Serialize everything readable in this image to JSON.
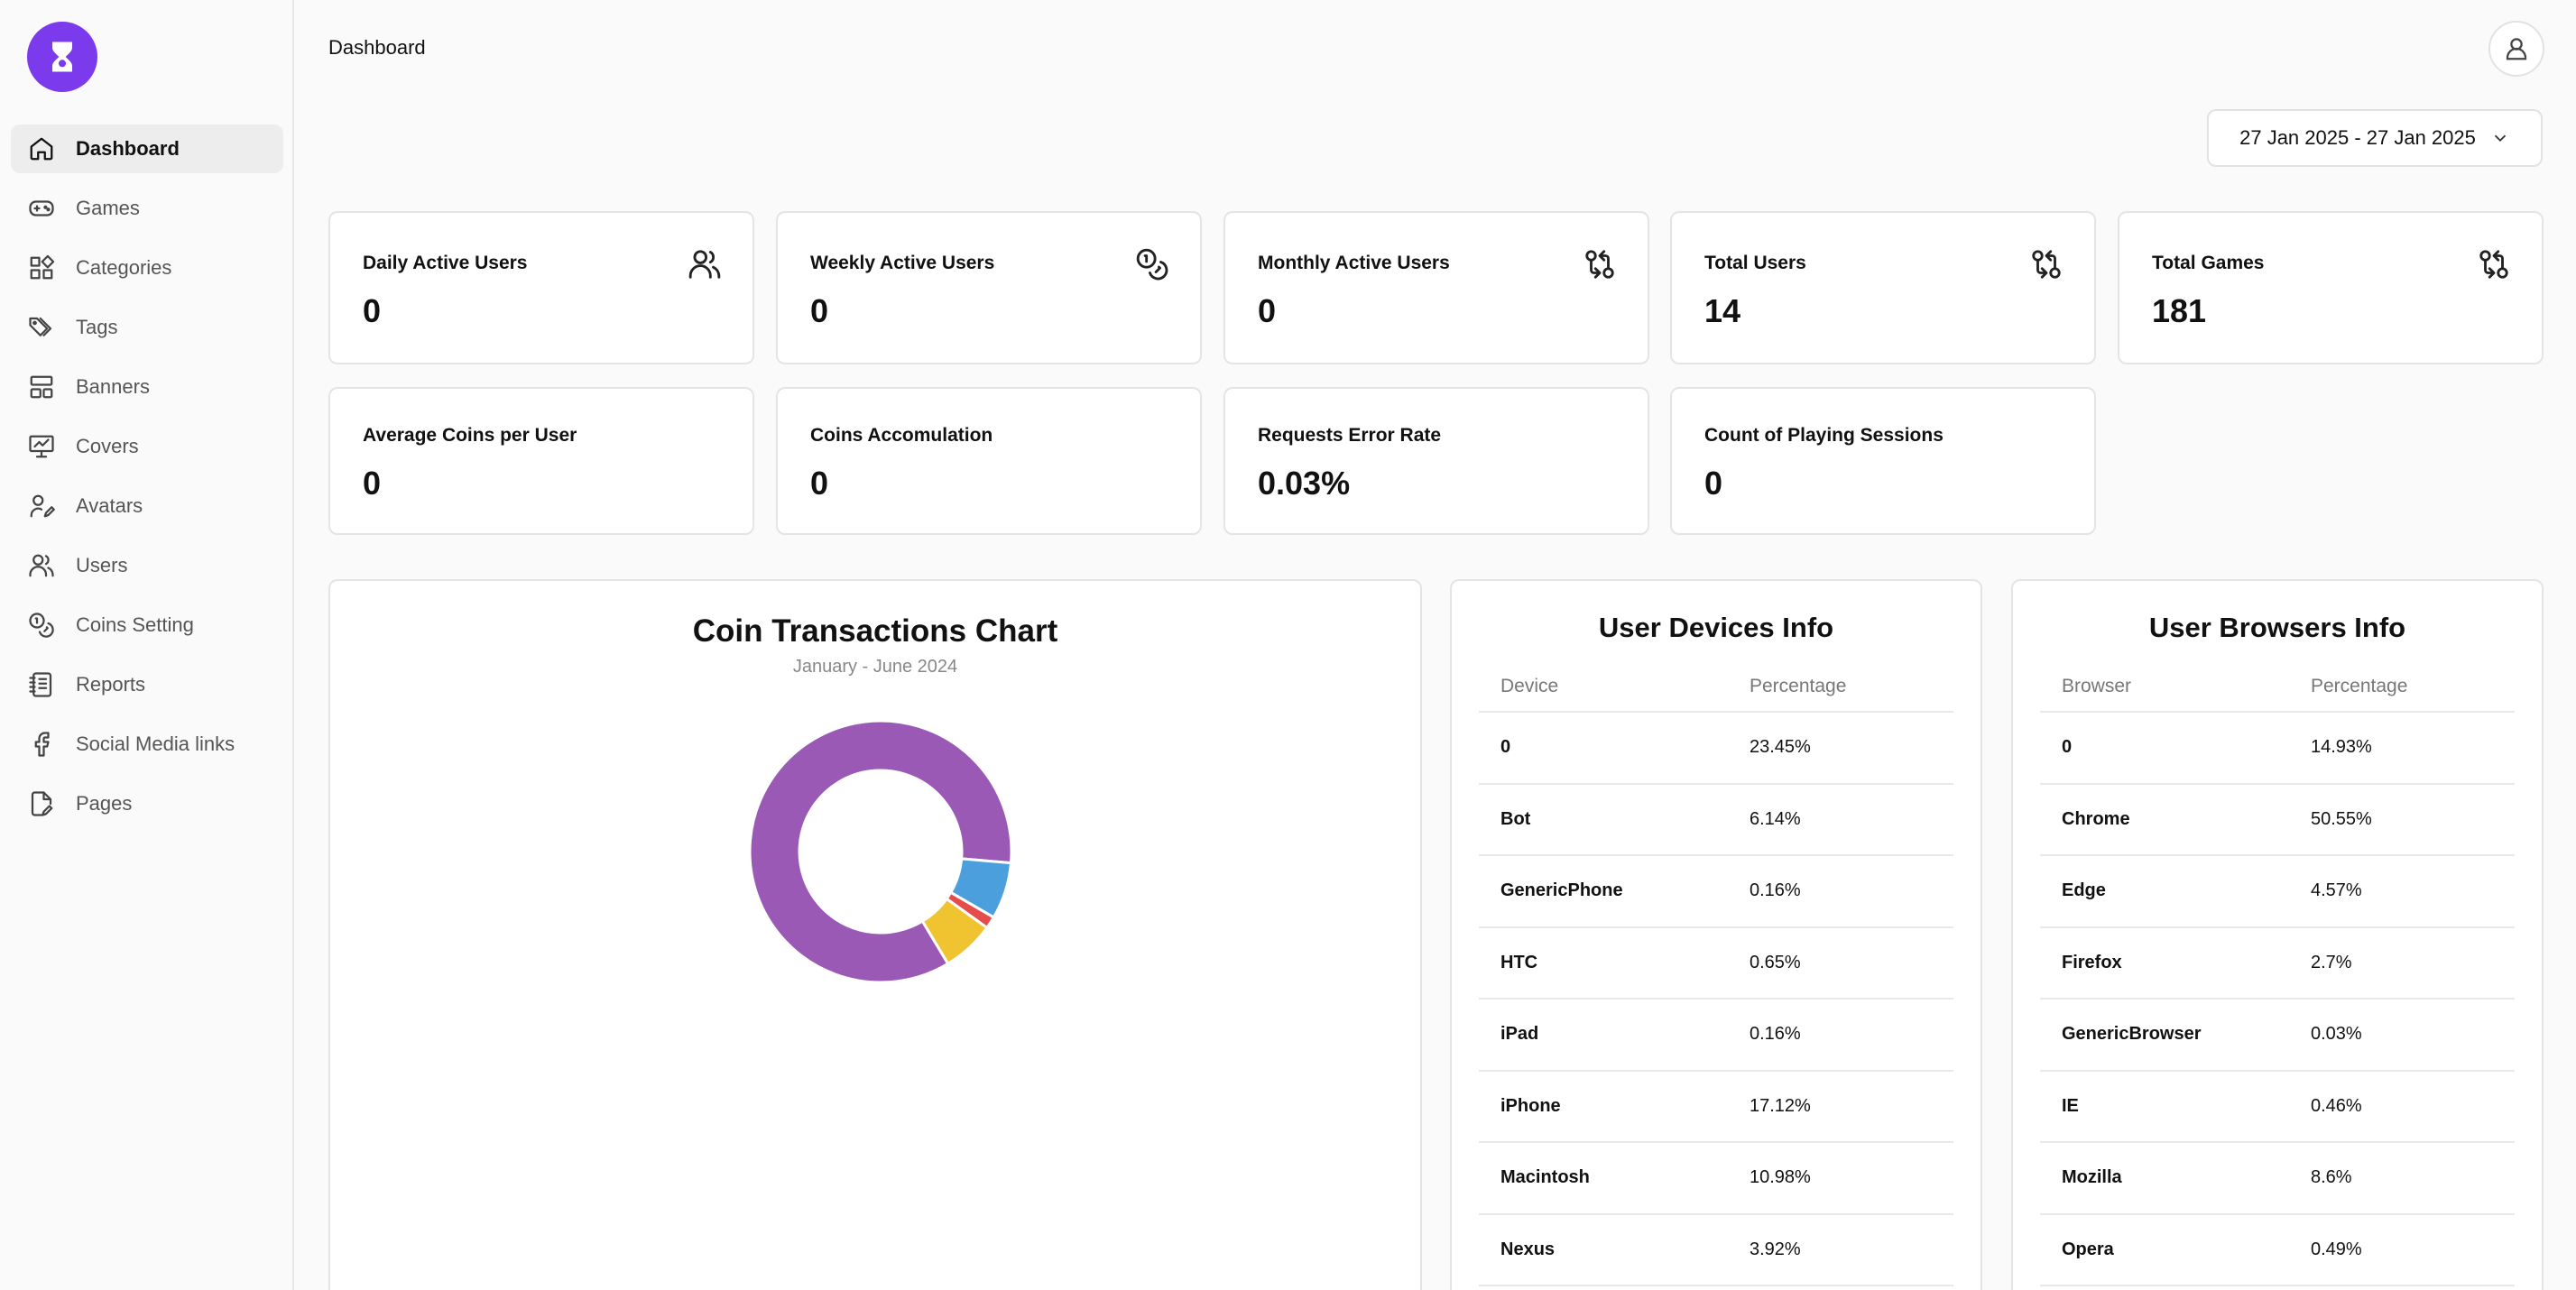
{
  "sidebar": {
    "items": [
      {
        "label": "Dashboard",
        "icon": "home-icon",
        "active": true
      },
      {
        "label": "Games",
        "icon": "gamepad-icon"
      },
      {
        "label": "Categories",
        "icon": "grid-icon"
      },
      {
        "label": "Tags",
        "icon": "tags-icon"
      },
      {
        "label": "Banners",
        "icon": "layout-icon"
      },
      {
        "label": "Covers",
        "icon": "presentation-icon"
      },
      {
        "label": "Avatars",
        "icon": "user-pen-icon"
      },
      {
        "label": "Users",
        "icon": "users-icon"
      },
      {
        "label": "Coins Setting",
        "icon": "coins-icon"
      },
      {
        "label": "Reports",
        "icon": "notebook-icon"
      },
      {
        "label": "Social Media links",
        "icon": "facebook-icon"
      },
      {
        "label": "Pages",
        "icon": "file-pen-icon"
      }
    ]
  },
  "header": {
    "breadcrumb": "Dashboard",
    "date_range": "27 Jan 2025 - 27 Jan 2025"
  },
  "stats": [
    {
      "title": "Daily Active Users",
      "value": "0",
      "icon": "users-icon"
    },
    {
      "title": "Weekly Active Users",
      "value": "0",
      "icon": "coins-icon"
    },
    {
      "title": "Monthly Active Users",
      "value": "0",
      "icon": "git-compare-icon"
    },
    {
      "title": "Total Users",
      "value": "14",
      "icon": "git-compare-icon"
    },
    {
      "title": "Total Games",
      "value": "181",
      "icon": "git-compare-icon"
    },
    {
      "title": "Average Coins per User",
      "value": "0"
    },
    {
      "title": "Coins Accomulation",
      "value": "0"
    },
    {
      "title": "Requests Error Rate",
      "value": "0.03%"
    },
    {
      "title": "Count of Playing Sessions",
      "value": "0"
    }
  ],
  "coin_chart": {
    "title": "Coin Transactions Chart",
    "subtitle": "January - June 2024"
  },
  "chart_data": {
    "type": "pie",
    "title": "Coin Transactions Chart",
    "subtitle": "January - June 2024",
    "donut": true,
    "slices": [
      {
        "value": 85,
        "color": "#9b59b6"
      },
      {
        "value": 7,
        "color": "#4a9fdc"
      },
      {
        "value": 1.5,
        "color": "#e74c4c"
      },
      {
        "value": 6.5,
        "color": "#f0c430"
      }
    ]
  },
  "devices": {
    "title": "User Devices Info",
    "columns": [
      "Device",
      "Percentage"
    ],
    "rows": [
      [
        "0",
        "23.45%"
      ],
      [
        "Bot",
        "6.14%"
      ],
      [
        "GenericPhone",
        "0.16%"
      ],
      [
        "HTC",
        "0.65%"
      ],
      [
        "iPad",
        "0.16%"
      ],
      [
        "iPhone",
        "17.12%"
      ],
      [
        "Macintosh",
        "10.98%"
      ],
      [
        "Nexus",
        "3.92%"
      ]
    ]
  },
  "browsers": {
    "title": "User Browsers Info",
    "columns": [
      "Browser",
      "Percentage"
    ],
    "rows": [
      [
        "0",
        "14.93%"
      ],
      [
        "Chrome",
        "50.55%"
      ],
      [
        "Edge",
        "4.57%"
      ],
      [
        "Firefox",
        "2.7%"
      ],
      [
        "GenericBrowser",
        "0.03%"
      ],
      [
        "IE",
        "0.46%"
      ],
      [
        "Mozilla",
        "8.6%"
      ],
      [
        "Opera",
        "0.49%"
      ]
    ]
  },
  "colors": {
    "brand": "#7c3aed"
  }
}
